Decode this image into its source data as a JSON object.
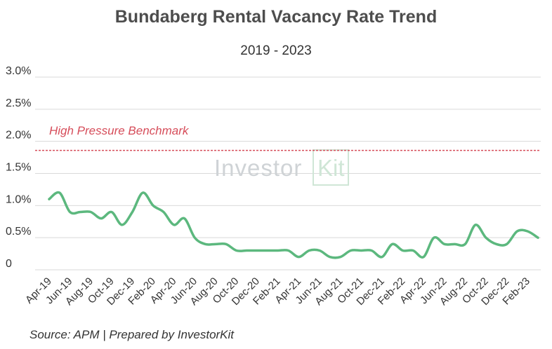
{
  "chart_data": {
    "type": "line",
    "title": "Bundaberg Rental Vacancy Rate Trend",
    "subtitle": "2019 - 2023",
    "y_ticks": [
      "0",
      "0.5%",
      "1.0%",
      "1.5%",
      "2.0%",
      "2.5%",
      "3.0%"
    ],
    "ylim": [
      0,
      3.0
    ],
    "x_tick_labels": [
      "Apr-19",
      "Jun-19",
      "Aug-19",
      "Oct-19",
      "Dec-19",
      "Feb-20",
      "Apr-20",
      "Jun-20",
      "Aug-20",
      "Oct-20",
      "Dec-20",
      "Feb-21",
      "Apr-21",
      "Jun-21",
      "Aug-21",
      "Oct-21",
      "Dec-21",
      "Feb-22",
      "Apr-22",
      "Jun-22",
      "Aug-22",
      "Oct-22",
      "Dec-22",
      "Feb-23"
    ],
    "x": [
      "Apr-19",
      "May-19",
      "Jun-19",
      "Jul-19",
      "Aug-19",
      "Sep-19",
      "Oct-19",
      "Nov-19",
      "Dec-19",
      "Jan-20",
      "Feb-20",
      "Mar-20",
      "Apr-20",
      "May-20",
      "Jun-20",
      "Jul-20",
      "Aug-20",
      "Sep-20",
      "Oct-20",
      "Nov-20",
      "Dec-20",
      "Jan-21",
      "Feb-21",
      "Mar-21",
      "Apr-21",
      "May-21",
      "Jun-21",
      "Jul-21",
      "Aug-21",
      "Sep-21",
      "Oct-21",
      "Nov-21",
      "Dec-21",
      "Jan-22",
      "Feb-22",
      "Mar-22",
      "Apr-22",
      "May-22",
      "Jun-22",
      "Jul-22",
      "Aug-22",
      "Sep-22",
      "Oct-22",
      "Nov-22",
      "Dec-22",
      "Jan-23",
      "Feb-23",
      "Mar-23"
    ],
    "series": [
      {
        "values": [
          1.1,
          1.2,
          0.9,
          0.9,
          0.9,
          0.8,
          0.9,
          0.7,
          0.9,
          1.2,
          1.0,
          0.9,
          0.7,
          0.8,
          0.5,
          0.4,
          0.4,
          0.4,
          0.3,
          0.3,
          0.3,
          0.3,
          0.3,
          0.3,
          0.2,
          0.3,
          0.3,
          0.2,
          0.2,
          0.3,
          0.3,
          0.3,
          0.2,
          0.4,
          0.3,
          0.3,
          0.2,
          0.5,
          0.4,
          0.4,
          0.4,
          0.7,
          0.5,
          0.4,
          0.4,
          0.6,
          0.6,
          0.5
        ],
        "color": "#5cb87e"
      }
    ],
    "benchmark": {
      "label": "High Pressure Benchmark",
      "value": 2.0,
      "color": "#d64d5a"
    },
    "grid": true,
    "gridline_color": "#d9d9d9"
  },
  "watermark": {
    "text": "Investor",
    "badge": "Kit"
  },
  "source_note": "Source: APM | Prepared by InvestorKit"
}
